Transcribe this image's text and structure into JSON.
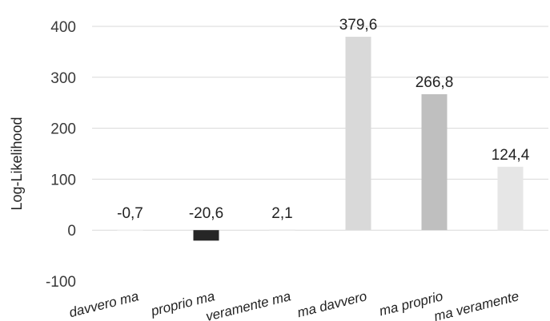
{
  "chart_data": {
    "type": "bar",
    "ylabel": "Log-Likelihood",
    "ylim": [
      -100,
      400
    ],
    "yticks": [
      -100,
      0,
      100,
      200,
      300,
      400
    ],
    "ytick_labels": [
      "-100",
      "0",
      "100",
      "200",
      "300",
      "400"
    ],
    "grid": true,
    "categories": [
      "davvero ma",
      "proprio ma",
      "veramente ma",
      "ma davvero",
      "ma proprio",
      "ma veramente"
    ],
    "values": [
      -0.7,
      -20.6,
      2.1,
      379.6,
      266.8,
      124.4
    ],
    "value_labels": [
      "-0,7",
      "-20,6",
      "2,1",
      "379,6",
      "266,8",
      "124,4"
    ],
    "bar_colors": [
      "#f2f2f2",
      "#262626",
      "#f2f2f2",
      "#d9d9d9",
      "#bfbfbf",
      "#e6e6e6"
    ]
  }
}
